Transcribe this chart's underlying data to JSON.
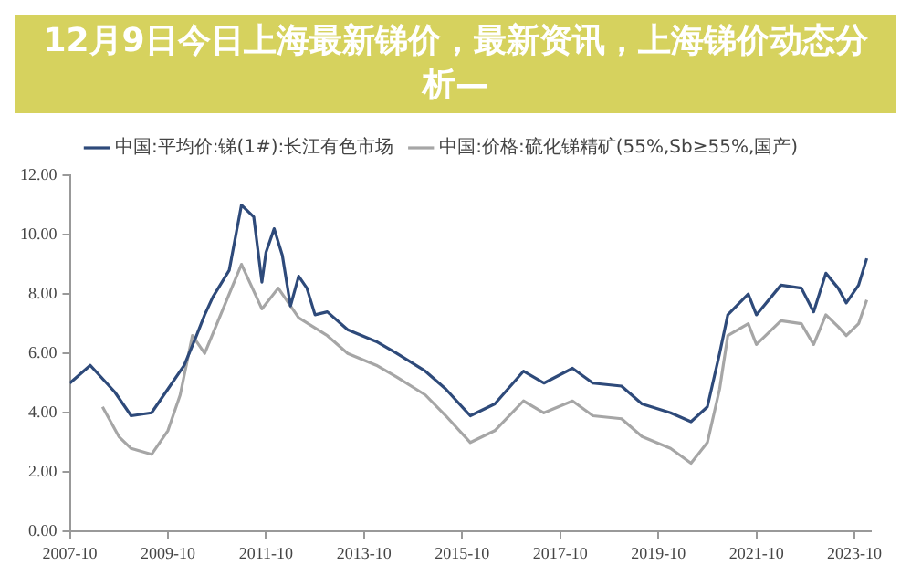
{
  "chart_data": {
    "type": "line",
    "title": "12月9日今日上海最新锑价，最新资讯，上海锑价动态分析—",
    "xlim": [
      "2007-10",
      "2024-02"
    ],
    "xticks": [
      "2007-10",
      "2009-10",
      "2011-10",
      "2013-10",
      "2015-10",
      "2017-10",
      "2019-10",
      "2021-10",
      "2023-10"
    ],
    "ylim": [
      0,
      12
    ],
    "yticks": [
      {
        "value": 0,
        "label": "0.00"
      },
      {
        "value": 2,
        "label": "2.00"
      },
      {
        "value": 4,
        "label": "4.00"
      },
      {
        "value": 6,
        "label": "6.00"
      },
      {
        "value": 8,
        "label": "8.00"
      },
      {
        "value": 10,
        "label": "10.00"
      },
      {
        "value": 12,
        "label": "12.00"
      }
    ],
    "grid": false,
    "legend": "top",
    "marker": "none",
    "line_style": "solid",
    "series": [
      {
        "name": "中国:平均价:锑(1#):长江有色市场",
        "color": "#2e4a7a",
        "x": [
          "2007-10",
          "2008-03",
          "2008-09",
          "2009-01",
          "2009-06",
          "2009-10",
          "2010-02",
          "2010-05",
          "2010-07",
          "2010-09",
          "2011-01",
          "2011-04",
          "2011-07",
          "2011-09",
          "2011-10",
          "2011-12",
          "2012-02",
          "2012-04",
          "2012-06",
          "2012-08",
          "2012-10",
          "2013-01",
          "2013-06",
          "2014-01",
          "2014-06",
          "2015-01",
          "2015-06",
          "2015-12",
          "2016-06",
          "2017-01",
          "2017-06",
          "2018-01",
          "2018-06",
          "2019-01",
          "2019-06",
          "2020-01",
          "2020-06",
          "2020-10",
          "2021-01",
          "2021-03",
          "2021-08",
          "2021-10",
          "2022-04",
          "2022-09",
          "2022-12",
          "2023-03",
          "2023-06",
          "2023-08",
          "2023-11",
          "2024-01"
        ],
        "values": [
          5.0,
          5.6,
          4.7,
          3.9,
          4.0,
          4.8,
          5.6,
          6.6,
          7.3,
          7.9,
          8.8,
          11.0,
          10.6,
          8.4,
          9.4,
          10.2,
          9.3,
          7.6,
          8.6,
          8.2,
          7.3,
          7.4,
          6.8,
          6.4,
          6.0,
          5.4,
          4.8,
          3.9,
          4.3,
          5.4,
          5.0,
          5.5,
          5.0,
          4.9,
          4.3,
          4.0,
          3.7,
          4.2,
          6.0,
          7.3,
          8.0,
          7.3,
          8.3,
          8.2,
          7.4,
          8.7,
          8.2,
          7.7,
          8.3,
          9.2
        ]
      },
      {
        "name": "中国:价格:硫化锑精矿(55%,Sb≥55%,国产)",
        "color": "#a6a6a6",
        "x": [
          "2008-06",
          "2008-10",
          "2009-01",
          "2009-06",
          "2009-10",
          "2010-01",
          "2010-04",
          "2010-07",
          "2010-10",
          "2011-04",
          "2011-09",
          "2012-01",
          "2012-06",
          "2013-01",
          "2013-06",
          "2014-01",
          "2014-06",
          "2015-01",
          "2015-06",
          "2015-12",
          "2016-06",
          "2017-01",
          "2017-06",
          "2018-01",
          "2018-06",
          "2019-01",
          "2019-06",
          "2020-01",
          "2020-06",
          "2020-10",
          "2021-01",
          "2021-03",
          "2021-08",
          "2021-10",
          "2022-04",
          "2022-09",
          "2022-12",
          "2023-03",
          "2023-06",
          "2023-08",
          "2023-11",
          "2024-01"
        ],
        "values": [
          4.2,
          3.2,
          2.8,
          2.6,
          3.4,
          4.6,
          6.6,
          6.0,
          7.0,
          9.0,
          7.5,
          8.2,
          7.2,
          6.6,
          6.0,
          5.6,
          5.2,
          4.6,
          3.9,
          3.0,
          3.4,
          4.4,
          4.0,
          4.4,
          3.9,
          3.8,
          3.2,
          2.8,
          2.3,
          3.0,
          4.8,
          6.6,
          7.0,
          6.3,
          7.1,
          7.0,
          6.3,
          7.3,
          6.9,
          6.6,
          7.0,
          7.8
        ]
      }
    ]
  }
}
